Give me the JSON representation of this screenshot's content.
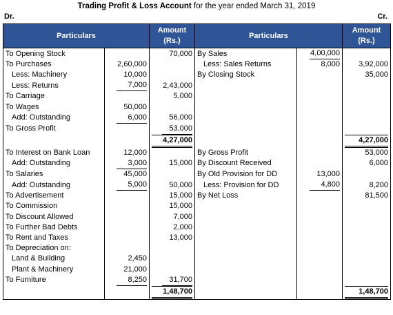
{
  "title": {
    "bold": "Trading Profit & Loss Account",
    "rest": " for the year ended March 31, 2019"
  },
  "dr_label": "Dr.",
  "cr_label": "Cr.",
  "headers": {
    "particulars_left": "Particulars",
    "amount_left": "Amount",
    "amount_unit_left": "(Rs.)",
    "particulars_right": "Particulars",
    "amount_right": "Amount",
    "amount_unit_right": "(Rs.)"
  },
  "rows": [
    {
      "lp": "To Opening Stock",
      "li": "",
      "la": "70,000",
      "rp": "By Sales",
      "ri": "4,00,000",
      "ra": ""
    },
    {
      "lp": "To Purchases",
      "li": "2,60,000",
      "la": "",
      "rp": "Less: Sales Returns",
      "ri": "8,000",
      "ra": "3,92,000"
    },
    {
      "lp": "Less: Machinery",
      "li": "10,000",
      "la": "",
      "rp": "By Closing Stock",
      "ri": "",
      "ra": "35,000"
    },
    {
      "lp": "Less: Returns",
      "li": "7,000",
      "la": "2,43,000",
      "rp": "",
      "ri": "",
      "ra": ""
    },
    {
      "lp": "To Carriage",
      "li": "",
      "la": "5,000",
      "rp": "",
      "ri": "",
      "ra": ""
    },
    {
      "lp": "To Wages",
      "li": "50,000",
      "la": "",
      "rp": "",
      "ri": "",
      "ra": ""
    },
    {
      "lp": "Add: Outstanding",
      "li": "6,000",
      "la": "56,000",
      "rp": "",
      "ri": "",
      "ra": ""
    },
    {
      "lp": "To Gross Profit",
      "li": "",
      "la": "53,000",
      "rp": "",
      "ri": "",
      "ra": ""
    },
    {
      "lp": "",
      "li": "",
      "la": "4,27,000",
      "rp": "",
      "ri": "",
      "ra": "4,27,000"
    },
    {
      "lp": "To Interest on Bank Loan",
      "li": "12,000",
      "la": "",
      "rp": "By Gross Profit",
      "ri": "",
      "ra": "53,000"
    },
    {
      "lp": "Add: Outstanding",
      "li": "3,000",
      "la": "15,000",
      "rp": "By Discount Received",
      "ri": "",
      "ra": "6,000"
    },
    {
      "lp": "To Salaries",
      "li": "45,000",
      "la": "",
      "rp": "By Old Provision for DD",
      "ri": "13,000",
      "ra": ""
    },
    {
      "lp": "Add: Outstanding",
      "li": "5,000",
      "la": "50,000",
      "rp": "Less: Provision for DD",
      "ri": "4,800",
      "ra": "8,200"
    },
    {
      "lp": "To Advertisement",
      "li": "",
      "la": "15,000",
      "rp": "By Net Loss",
      "ri": "",
      "ra": "81,500"
    },
    {
      "lp": "To Commission",
      "li": "",
      "la": "15,000",
      "rp": "",
      "ri": "",
      "ra": ""
    },
    {
      "lp": "To Discount Allowed",
      "li": "",
      "la": "7,000",
      "rp": "",
      "ri": "",
      "ra": ""
    },
    {
      "lp": "To Further Bad Debts",
      "li": "",
      "la": "2,000",
      "rp": "",
      "ri": "",
      "ra": ""
    },
    {
      "lp": "To Rent and Taxes",
      "li": "",
      "la": "13,000",
      "rp": "",
      "ri": "",
      "ra": ""
    },
    {
      "lp": "To Depreciation on:",
      "li": "",
      "la": "",
      "rp": "",
      "ri": "",
      "ra": ""
    },
    {
      "lp": "Land & Building",
      "li": "2,450",
      "la": "",
      "rp": "",
      "ri": "",
      "ra": ""
    },
    {
      "lp": "Plant & Machinery",
      "li": "21,000",
      "la": "",
      "rp": "",
      "ri": "",
      "ra": ""
    },
    {
      "lp": "To Furniture",
      "li": "8,250",
      "la": "31,700",
      "rp": "",
      "ri": "",
      "ra": ""
    },
    {
      "lp": "",
      "li": "",
      "la": "1,48,700",
      "rp": "",
      "ri": "",
      "ra": "1,48,700"
    }
  ]
}
